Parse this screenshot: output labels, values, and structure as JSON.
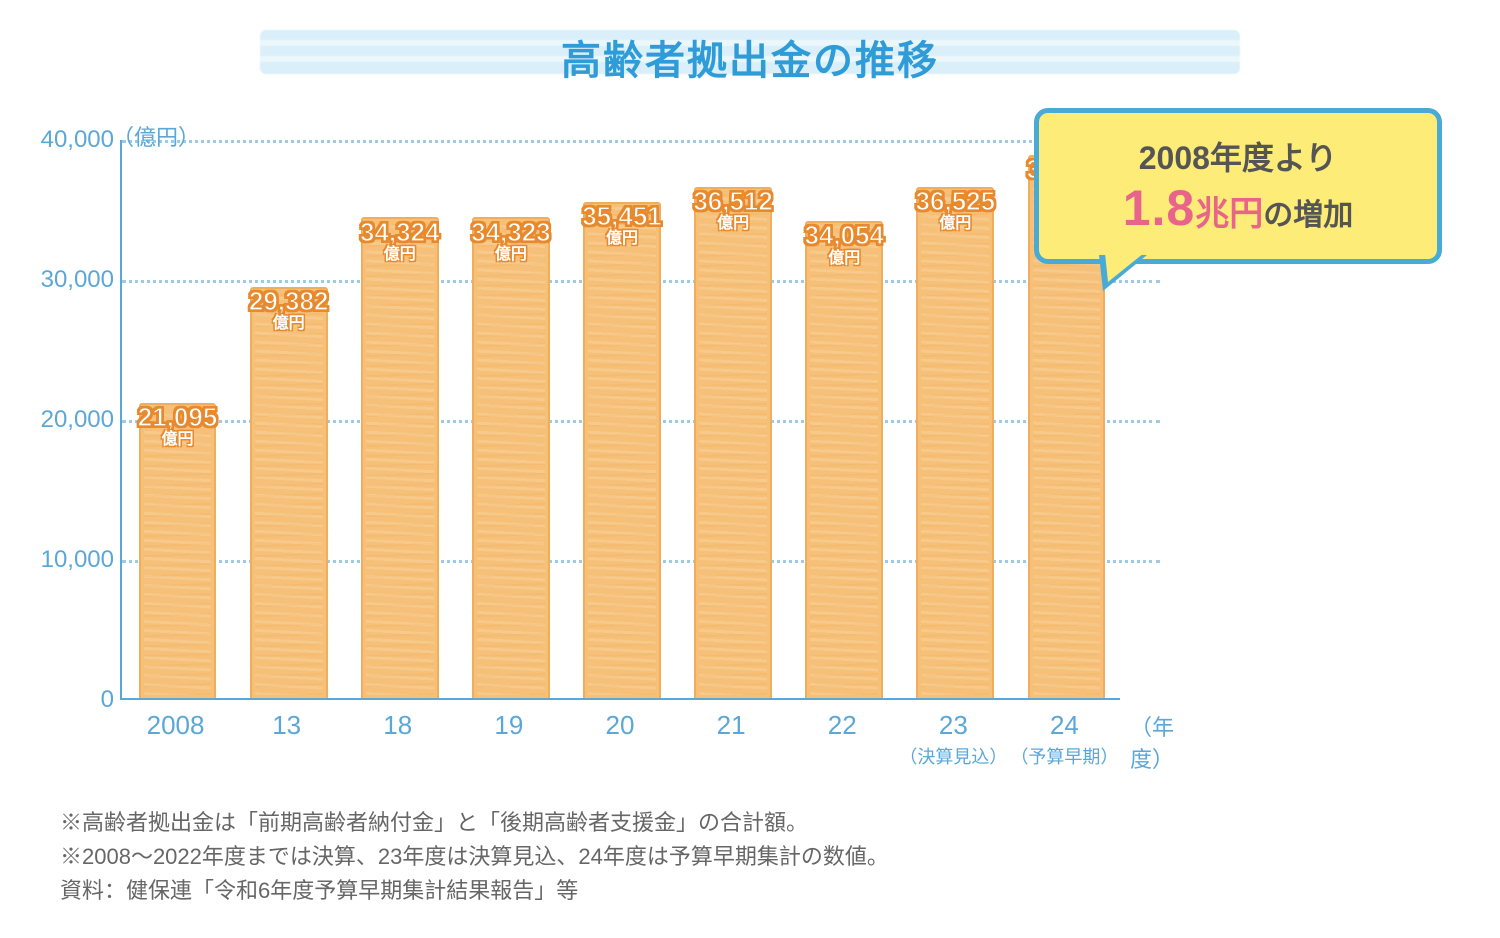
{
  "title": "高齢者拠出金の推移",
  "chart": {
    "type": "bar",
    "y_unit_label": "（億円）",
    "x_unit_label": "（年度）",
    "ylim": [
      0,
      40000
    ],
    "ytick_step": 10000,
    "yticks": [
      "0",
      "10,000",
      "20,000",
      "30,000",
      "40,000"
    ],
    "background_color": "#ffffff",
    "axis_color": "#5ba7d8",
    "grid_color": "#5ba7d8",
    "bar_color": "#f6c079",
    "bar_border_color": "#f0ae5c",
    "bar_label_text_color": "#ffffff",
    "bar_label_outline_color": "#e78a2f",
    "bar_value_fontsize": 26,
    "bar_unit_fontsize": 16,
    "axis_label_fontsize": 24,
    "x_label_fontsize": 26,
    "bar_width_ratio": 0.7,
    "value_unit": "億円",
    "bars": [
      {
        "x": "2008",
        "value": 21095,
        "value_str": "21,095"
      },
      {
        "x": "13",
        "value": 29382,
        "value_str": "29,382"
      },
      {
        "x": "18",
        "value": 34324,
        "value_str": "34,324"
      },
      {
        "x": "19",
        "value": 34323,
        "value_str": "34,323"
      },
      {
        "x": "20",
        "value": 35451,
        "value_str": "35,451"
      },
      {
        "x": "21",
        "value": 36512,
        "value_str": "36,512"
      },
      {
        "x": "22",
        "value": 34054,
        "value_str": "34,054"
      },
      {
        "x": "23",
        "value": 36525,
        "value_str": "36,525",
        "sub": "（決算見込）"
      },
      {
        "x": "24",
        "value": 38772,
        "value_str": "38,772",
        "sub": "（予算早期）"
      }
    ]
  },
  "callout": {
    "line1": "2008年度より",
    "big_number": "1.8",
    "big_unit": "兆円",
    "suffix": "の増加",
    "bg_color": "#fdec77",
    "border_color": "#4aaad6",
    "text_color": "#555555",
    "accent_color": "#e8648a"
  },
  "footnotes": [
    "※高齢者拠出金は「前期高齢者納付金」と「後期高齢者支援金」の合計額。",
    "※2008～2022年度までは決算、23年度は決算見込、24年度は予算早期集計の数値。",
    "資料：健保連「令和6年度予算早期集計結果報告」等"
  ]
}
